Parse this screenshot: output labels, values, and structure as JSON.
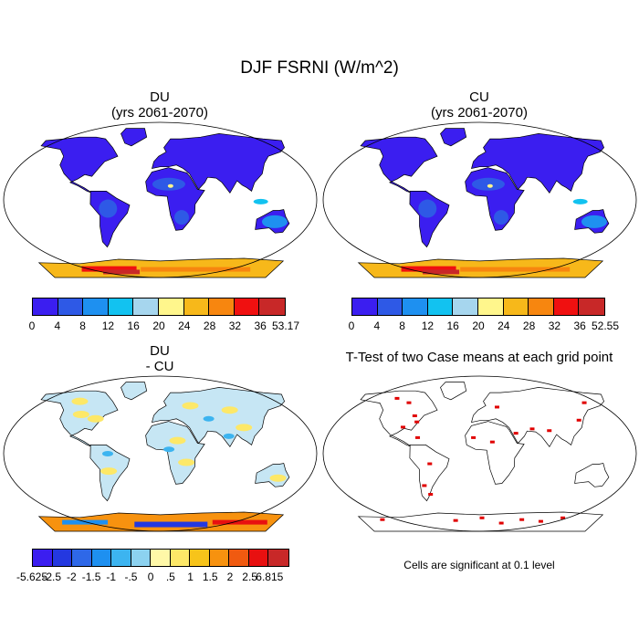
{
  "title": "DJF FSRNI (W/m^2)",
  "panels": [
    {
      "id": "du",
      "title_line1": "DU",
      "title_line2": "(yrs 2061-2070)",
      "type": "field"
    },
    {
      "id": "cu",
      "title_line1": "CU",
      "title_line2": "(yrs 2061-2070)",
      "type": "field"
    },
    {
      "id": "diff",
      "title_line1": "DU",
      "title_line2": "- CU",
      "type": "difference"
    },
    {
      "id": "ttest",
      "title_line1": "T-Test of two Case means at each grid point",
      "title_line2": "",
      "type": "significance"
    }
  ],
  "colorbars": {
    "du": {
      "labels": [
        "0",
        "4",
        "8",
        "12",
        "16",
        "20",
        "24",
        "28",
        "32",
        "36",
        "53.17"
      ],
      "colors": [
        "#3b1ef0",
        "#2e59e6",
        "#1e90f0",
        "#12c2f0",
        "#a6d6ee",
        "#fff68c",
        "#f7b81a",
        "#f7860f",
        "#f01010",
        "#c82828"
      ]
    },
    "cu": {
      "labels": [
        "0",
        "4",
        "8",
        "12",
        "16",
        "20",
        "24",
        "28",
        "32",
        "36",
        "52.55"
      ],
      "colors": [
        "#3b1ef0",
        "#2e59e6",
        "#1e90f0",
        "#12c2f0",
        "#a6d6ee",
        "#fff68c",
        "#f7b81a",
        "#f7860f",
        "#f01010",
        "#c82828"
      ]
    },
    "diff": {
      "labels": [
        "-5.625",
        "-2.5",
        "-2",
        "-1.5",
        "-1",
        "-.5",
        "0",
        ".5",
        "1",
        "1.5",
        "2",
        "2.5",
        "6.815"
      ],
      "colors": [
        "#3b1ef0",
        "#2438e0",
        "#2e68e8",
        "#1e90f0",
        "#3cb4f0",
        "#8cd2f0",
        "#fff8a8",
        "#fde868",
        "#f7c41a",
        "#f7920f",
        "#f05a10",
        "#e81010",
        "#c82828"
      ]
    }
  },
  "significance_note": "Cells are significant at 0.1 level",
  "colors": {
    "land_field": "#3b1ef0",
    "land_diff": "#c6e6f4",
    "significant": "#e00000",
    "outline": "#000000"
  }
}
